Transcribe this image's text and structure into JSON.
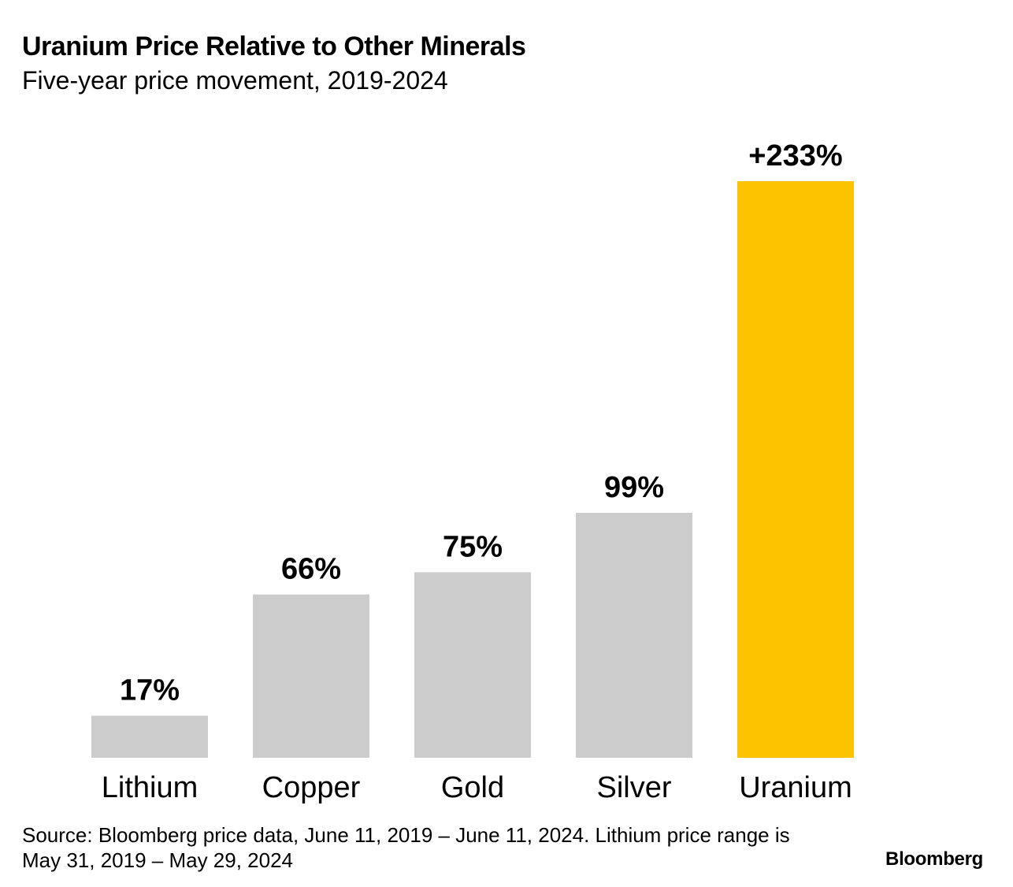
{
  "chart_data": {
    "type": "bar",
    "title": "Uranium Price Relative to Other Minerals",
    "subtitle": "Five-year price movement, 2019-2024",
    "categories": [
      "Lithium",
      "Copper",
      "Gold",
      "Silver",
      "Uranium"
    ],
    "values": [
      17,
      66,
      75,
      99,
      233
    ],
    "value_labels": [
      "17%",
      "66%",
      "75%",
      "99%",
      "+233%"
    ],
    "unit": "%",
    "ylim": [
      0,
      233
    ],
    "grid": false,
    "xlabel": "",
    "ylabel": "",
    "colors": {
      "default": "#cccccc",
      "highlight": "#fdc300"
    },
    "highlight_category": "Uranium"
  },
  "source": "Source: Bloomberg price data, June 11, 2019 – June 11, 2024. Lithium price range is May 31, 2019 – May 29, 2024",
  "brand": "Bloomberg"
}
